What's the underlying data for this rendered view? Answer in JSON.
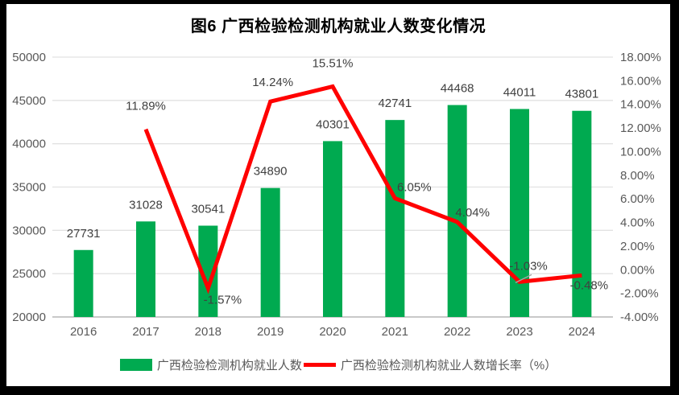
{
  "title": "图6    广西检验检测机构就业人数变化情况",
  "colors": {
    "bar": "#00AA50",
    "line": "#FF0000",
    "grid": "#E2E2E2",
    "axis_line": "#C9C9C9",
    "tick_text": "#595959",
    "label_text": "#404040",
    "legend_text": "#595959",
    "leader": "#A6A6A6",
    "frame": "#000000"
  },
  "chart_data": {
    "type": "bar+line combo",
    "title": "图6    广西检验检测机构就业人数变化情况",
    "categories": [
      "2016",
      "2017",
      "2018",
      "2019",
      "2020",
      "2021",
      "2022",
      "2023",
      "2024"
    ],
    "series": [
      {
        "name": "广西检验检测机构就业人数",
        "type": "bar",
        "axis": "left",
        "values": [
          27731,
          31028,
          30541,
          34890,
          40301,
          42741,
          44468,
          44011,
          43801
        ],
        "labels": [
          "27731",
          "31028",
          "30541",
          "34890",
          "40301",
          "42741",
          "44468",
          "44011",
          "43801"
        ]
      },
      {
        "name": "广西检验检测机构就业人数增长率（%）",
        "type": "line",
        "axis": "right",
        "values": [
          null,
          11.89,
          -1.57,
          14.24,
          15.51,
          6.05,
          4.04,
          -1.03,
          -0.48
        ],
        "labels": [
          null,
          "11.89%",
          "-1.57%",
          "14.24%",
          "15.51%",
          "6.05%",
          "4.04%",
          "-1.03%",
          "-0.48%"
        ]
      }
    ],
    "left_axis": {
      "min": 20000,
      "max": 50000,
      "step": 5000,
      "ticks": [
        "20000",
        "25000",
        "30000",
        "35000",
        "40000",
        "45000",
        "50000"
      ]
    },
    "right_axis": {
      "min": -4,
      "max": 18,
      "step": 2,
      "ticks": [
        "-4.00%",
        "-2.00%",
        "0.00%",
        "2.00%",
        "4.00%",
        "6.00%",
        "8.00%",
        "10.00%",
        "12.00%",
        "14.00%",
        "16.00%",
        "18.00%"
      ]
    },
    "grid": "horizontal only",
    "legend_position": "bottom center",
    "legend": [
      {
        "label": "广西检验检测机构就业人数",
        "swatch": "bar"
      },
      {
        "label": "广西检验检测机构就业人数增长率（%）",
        "swatch": "line"
      }
    ]
  }
}
